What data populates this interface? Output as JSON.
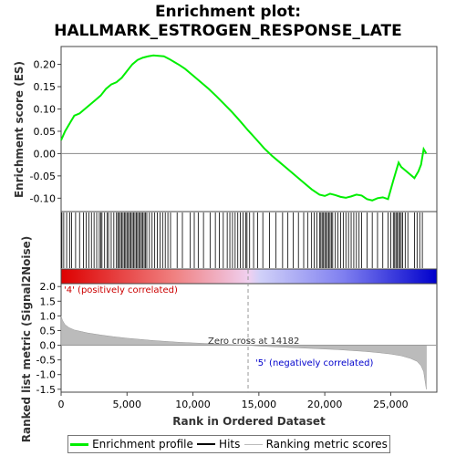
{
  "chart_data": {
    "type": "line",
    "title_lines": [
      "Enrichment plot:",
      "HALLMARK_ESTROGEN_RESPONSE_LATE"
    ],
    "xlabel": "Rank in Ordered Dataset",
    "top_panel": {
      "ylabel": "Enrichment score (ES)",
      "ylim": [
        -0.13,
        0.24
      ],
      "yticks": [
        -0.1,
        -0.05,
        0.0,
        0.05,
        0.1,
        0.15,
        0.2
      ],
      "ytick_labels": [
        "-0.10",
        "-0.05",
        "0.00",
        "0.05",
        "0.10",
        "0.15",
        "0.20"
      ],
      "series": [
        {
          "name": "Enrichment profile",
          "color": "#00ee00",
          "x": [
            0,
            300,
            700,
            1000,
            1400,
            1800,
            2200,
            2600,
            3000,
            3400,
            3800,
            4200,
            4600,
            5000,
            5400,
            5800,
            6200,
            6600,
            7000,
            7400,
            7800,
            8200,
            8600,
            9000,
            9400,
            10000,
            10600,
            11200,
            11800,
            12400,
            13000,
            13600,
            14182,
            14800,
            15400,
            16000,
            16600,
            17200,
            17800,
            18400,
            19000,
            19600,
            20000,
            20400,
            20800,
            21200,
            21600,
            22000,
            22400,
            22800,
            23200,
            23600,
            24000,
            24400,
            24800,
            25200,
            25400,
            25600,
            25800,
            26000,
            26400,
            26800,
            27100,
            27300,
            27500,
            27700
          ],
          "y": [
            0.03,
            0.05,
            0.07,
            0.085,
            0.09,
            0.1,
            0.11,
            0.12,
            0.13,
            0.145,
            0.155,
            0.16,
            0.17,
            0.185,
            0.2,
            0.21,
            0.215,
            0.218,
            0.22,
            0.219,
            0.218,
            0.212,
            0.205,
            0.198,
            0.19,
            0.175,
            0.16,
            0.145,
            0.128,
            0.11,
            0.092,
            0.072,
            0.052,
            0.032,
            0.012,
            -0.005,
            -0.02,
            -0.035,
            -0.05,
            -0.065,
            -0.08,
            -0.092,
            -0.095,
            -0.09,
            -0.093,
            -0.097,
            -0.099,
            -0.096,
            -0.092,
            -0.094,
            -0.102,
            -0.105,
            -0.1,
            -0.098,
            -0.102,
            -0.06,
            -0.04,
            -0.02,
            -0.03,
            -0.035,
            -0.045,
            -0.055,
            -0.04,
            -0.025,
            0.01,
            0.0
          ]
        }
      ],
      "hit_ranks": [
        60,
        200,
        420,
        650,
        800,
        1100,
        1400,
        1700,
        1900,
        2100,
        2300,
        2500,
        2700,
        2900,
        3000,
        3100,
        3300,
        3500,
        3600,
        3800,
        4000,
        4200,
        4300,
        4400,
        4500,
        4600,
        4700,
        4800,
        4900,
        5000,
        5100,
        5200,
        5300,
        5400,
        5500,
        5600,
        5700,
        5800,
        5900,
        6000,
        6100,
        6200,
        6300,
        6400,
        6500,
        6700,
        6900,
        7100,
        7300,
        7500,
        7700,
        7900,
        8100,
        8300,
        8800,
        9200,
        9800,
        10100,
        10400,
        10800,
        11300,
        11700,
        12000,
        12300,
        12600,
        12800,
        13000,
        13200,
        13400,
        13600,
        13800,
        14000,
        14100,
        14300,
        14600,
        14900,
        15300,
        15800,
        16300,
        16800,
        17200,
        17600,
        18000,
        18400,
        18700,
        19000,
        19200,
        19400,
        19600,
        19700,
        19800,
        19900,
        20000,
        20100,
        20200,
        20300,
        20400,
        20500,
        20600,
        20800,
        21000,
        21200,
        21400,
        21600,
        21800,
        22000,
        22200,
        22400,
        22600,
        22800,
        23200,
        23600,
        24000,
        24400,
        24800,
        25000,
        25200,
        25300,
        25400,
        25500,
        25600,
        25700,
        25800,
        25900,
        26100,
        26300,
        26800,
        27000,
        27200,
        27400
      ]
    },
    "middle_panel": {
      "positive_label": "'4' (positively correlated)",
      "negative_label": "'5' (negatively correlated)",
      "positive_color": "#dd0000",
      "negative_color": "#0000cc"
    },
    "bottom_panel": {
      "ylabel": "Ranked list metric (Signal2Noise)",
      "ylim": [
        -1.6,
        2.1
      ],
      "yticks": [
        -1.5,
        -1.0,
        -0.5,
        0.0,
        0.5,
        1.0,
        1.5,
        2.0
      ],
      "ytick_labels": [
        "-1.5",
        "-1.0",
        "-0.5",
        "0.0",
        "0.5",
        "1.0",
        "1.5",
        "2.0"
      ],
      "zero_cross_text": "Zero cross at 14182",
      "zero_cross_rank": 14182,
      "series": [
        {
          "name": "Ranking metric scores",
          "color": "#bbbbbb",
          "x": [
            0,
            100,
            300,
            600,
            1000,
            2000,
            3000,
            4000,
            5000,
            6000,
            7000,
            8000,
            9000,
            10000,
            11000,
            12000,
            13000,
            14182,
            15000,
            16000,
            17000,
            18000,
            19000,
            20000,
            21000,
            22000,
            23000,
            24000,
            25000,
            25800,
            26500,
            27000,
            27300,
            27500,
            27700
          ],
          "y": [
            1.0,
            0.85,
            0.7,
            0.6,
            0.52,
            0.42,
            0.35,
            0.29,
            0.24,
            0.2,
            0.16,
            0.13,
            0.1,
            0.08,
            0.06,
            0.04,
            0.02,
            0.0,
            -0.03,
            -0.05,
            -0.07,
            -0.09,
            -0.11,
            -0.13,
            -0.15,
            -0.18,
            -0.21,
            -0.25,
            -0.3,
            -0.36,
            -0.45,
            -0.55,
            -0.7,
            -0.9,
            -1.5
          ]
        }
      ]
    },
    "xlim": [
      0,
      28500
    ],
    "xticks": [
      0,
      5000,
      10000,
      15000,
      20000,
      25000
    ],
    "xtick_labels": [
      "0",
      "5,000",
      "10,000",
      "15,000",
      "20,000",
      "25,000"
    ],
    "legend": {
      "placement": "bottom",
      "entries": [
        {
          "label": "Enrichment profile",
          "color": "#00ee00"
        },
        {
          "label": "Hits",
          "color": "#000000"
        },
        {
          "label": "Ranking metric scores",
          "color": "#bbbbbb"
        }
      ]
    }
  }
}
